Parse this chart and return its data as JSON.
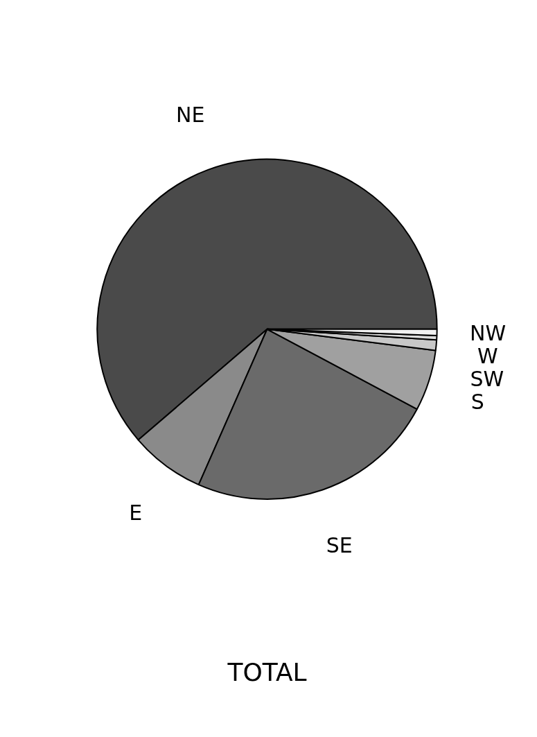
{
  "chart_data": {
    "type": "pie",
    "title": "TOTAL",
    "categories": [
      "NE",
      "E",
      "SE",
      "S",
      "SW",
      "W",
      "NW"
    ],
    "values": [
      61.3,
      7.1,
      23.8,
      5.8,
      1.0,
      0.4,
      0.6
    ],
    "colors": [
      "#4a4a4a",
      "#8a8a8a",
      "#6a6a6a",
      "#a0a0a0",
      "#c8c8c8",
      "#dcdcdc",
      "#f0f0f0"
    ]
  }
}
